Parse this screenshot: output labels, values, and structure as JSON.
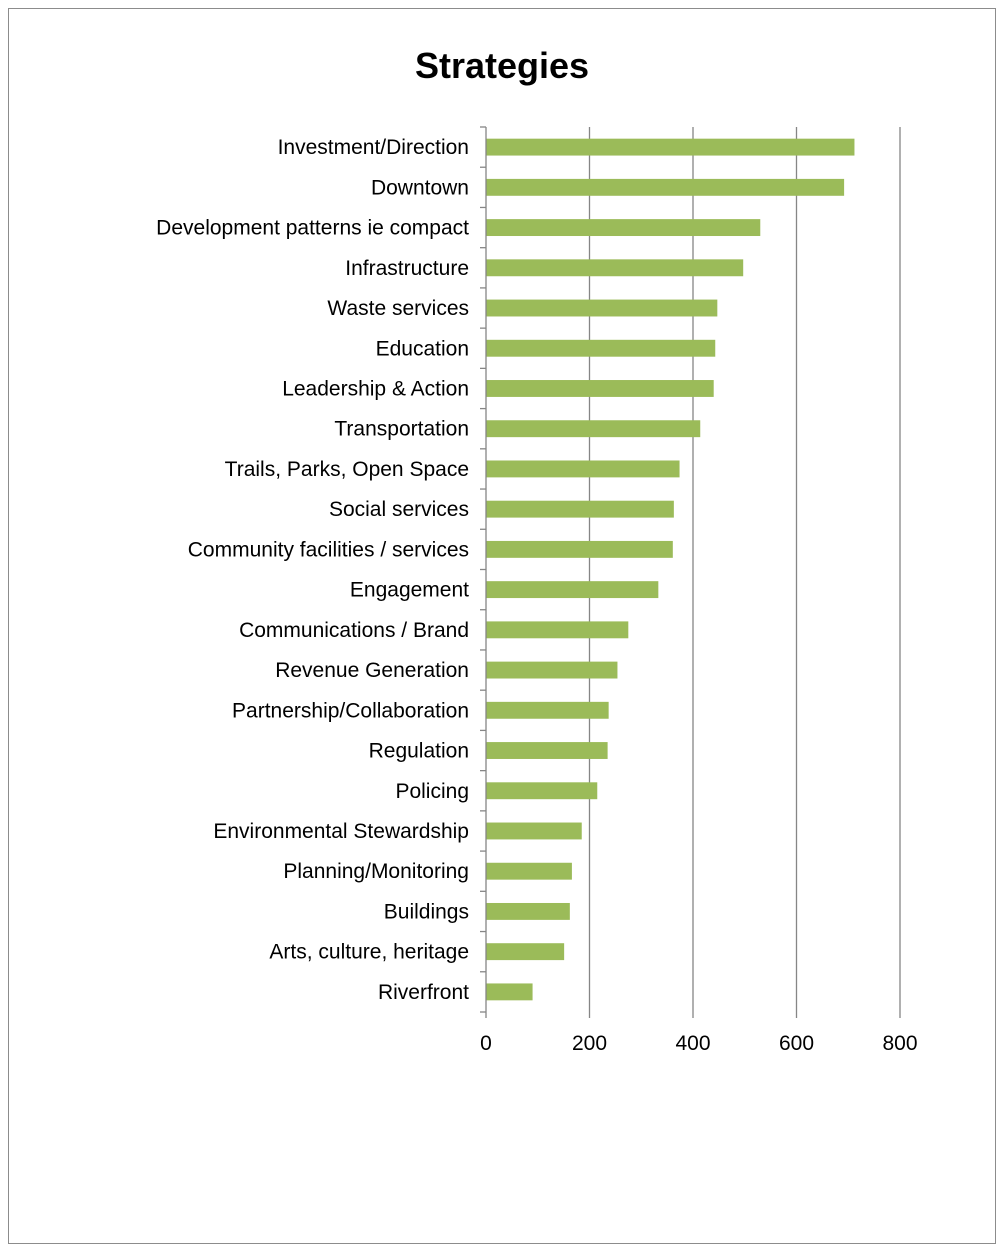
{
  "chart_data": {
    "type": "bar",
    "orientation": "horizontal",
    "title": "Strategies",
    "xlabel": "",
    "ylabel": "",
    "categories": [
      "Investment/Direction",
      "Downtown",
      "Development patterns ie compact",
      "Infrastructure",
      "Waste services",
      "Education",
      "Leadership & Action",
      "Transportation",
      "Trails, Parks, Open Space",
      "Social services",
      "Community facilities / services",
      "Engagement",
      "Communications / Brand",
      "Revenue Generation",
      "Partnership/Collaboration",
      "Regulation",
      "Policing",
      "Environmental Stewardship",
      "Planning/Monitoring",
      "Buildings",
      "Arts, culture, heritage",
      "Riverfront"
    ],
    "values": [
      712,
      692,
      530,
      497,
      447,
      443,
      440,
      414,
      374,
      363,
      361,
      333,
      275,
      254,
      237,
      235,
      215,
      185,
      166,
      162,
      151,
      90
    ],
    "xlim": [
      0,
      800
    ],
    "xticks": [
      0,
      200,
      400,
      600,
      800
    ],
    "grid": "vertical major gridlines",
    "legend": "none",
    "bar_color": "#9bbb59",
    "gridline_color": "#868686"
  }
}
